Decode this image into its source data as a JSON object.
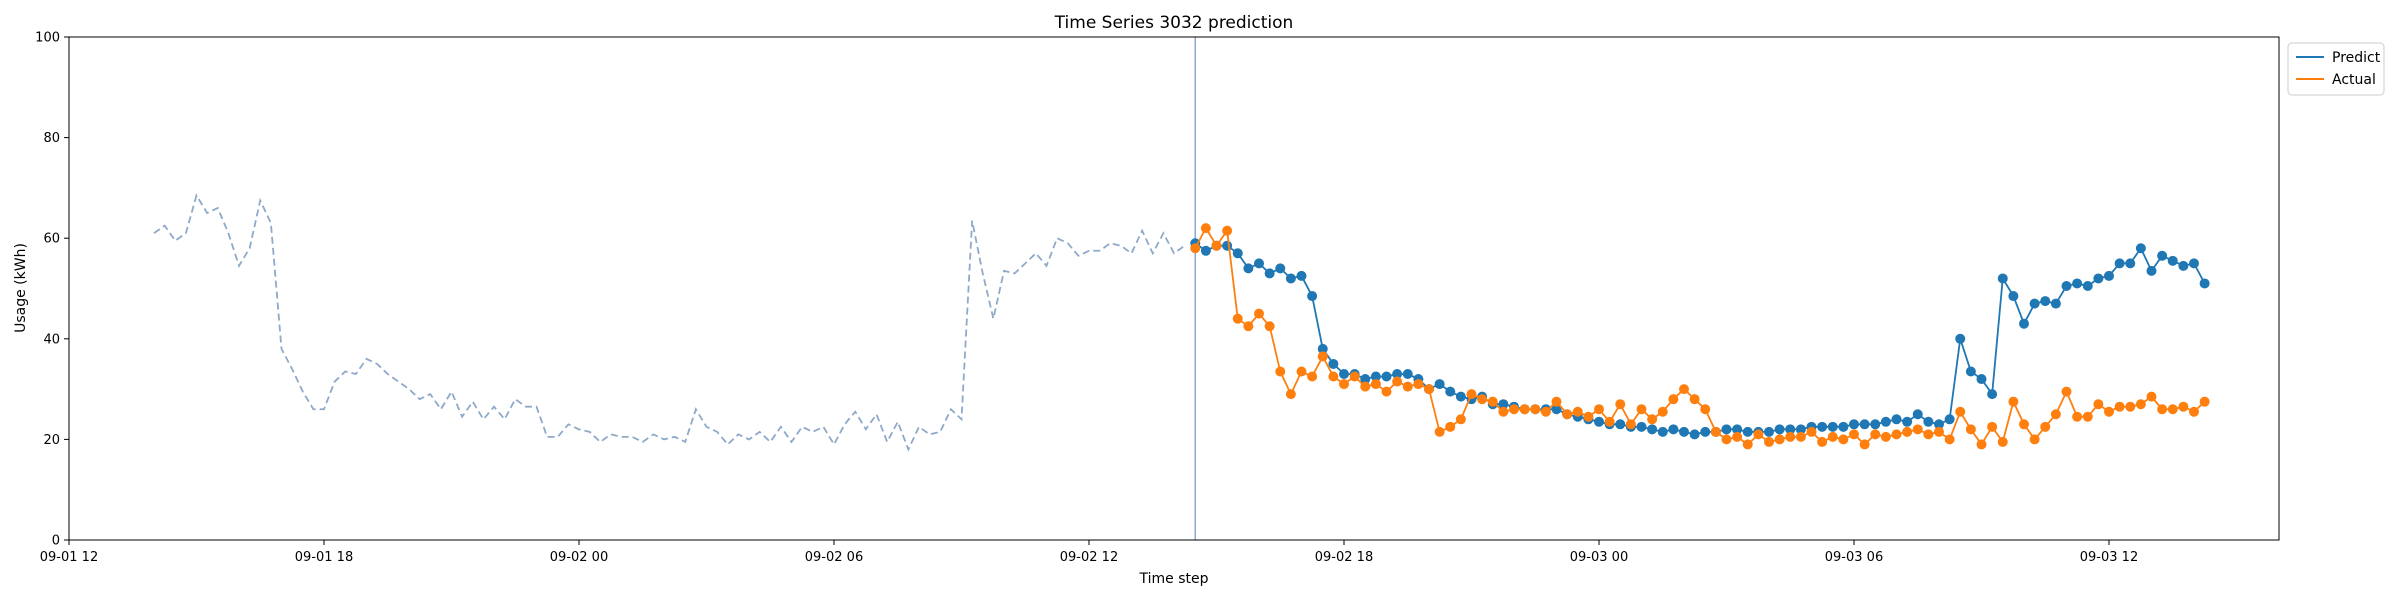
{
  "chart_data": {
    "type": "line",
    "title": "Time Series 3032 prediction",
    "xlabel": "Time step",
    "ylabel": "Usage (kWh)",
    "ylim": [
      0,
      100
    ],
    "yticks": [
      0,
      20,
      40,
      60,
      80,
      100
    ],
    "x_start": "09-01 12:00",
    "x_end": "09-03 16:00",
    "xticks": [
      {
        "time": "09-01 12:00",
        "label": "09-01 12"
      },
      {
        "time": "09-01 18:00",
        "label": "09-01 18"
      },
      {
        "time": "09-02 00:00",
        "label": "09-02 00"
      },
      {
        "time": "09-02 06:00",
        "label": "09-02 06"
      },
      {
        "time": "09-02 12:00",
        "label": "09-02 12"
      },
      {
        "time": "09-02 18:00",
        "label": "09-02 18"
      },
      {
        "time": "09-03 00:00",
        "label": "09-03 00"
      },
      {
        "time": "09-03 06:00",
        "label": "09-03 06"
      },
      {
        "time": "09-03 12:00",
        "label": "09-03 12"
      }
    ],
    "grid": false,
    "legend_position": "top-right",
    "forecast_start": "09-02 14:30",
    "history": {
      "start": "09-01 14:00",
      "step_minutes": 15,
      "color": "#8fa9c9",
      "style": "dashed",
      "values": [
        61,
        62.5,
        59.5,
        61,
        68.5,
        65,
        66,
        61,
        54.5,
        58,
        67.5,
        63,
        38,
        34,
        29.5,
        26,
        26,
        31.5,
        33.5,
        33,
        36,
        35,
        33,
        31.5,
        30,
        28,
        29,
        26,
        29.5,
        24.5,
        27.5,
        24,
        26.5,
        24,
        28,
        26.5,
        26.5,
        20.5,
        20.5,
        23,
        22,
        21.5,
        19.5,
        21,
        20.5,
        20.5,
        19.5,
        21,
        20,
        20.5,
        19.5,
        26,
        22.5,
        21.5,
        19,
        21,
        20,
        21.5,
        19.5,
        22.5,
        19.5,
        22.5,
        21.5,
        22.5,
        19,
        23,
        25.5,
        22,
        25,
        19.5,
        23.5,
        18,
        22.5,
        21,
        21.5,
        26,
        24,
        63.5,
        53,
        44,
        53.5,
        53,
        55,
        57,
        54.5,
        60,
        59,
        56.5,
        57.5,
        57.5,
        59,
        58.5,
        57,
        61.5,
        57,
        61,
        57,
        58.5
      ]
    },
    "series": [
      {
        "name": "Predict",
        "color": "#1f77b4",
        "start": "09-02 14:30",
        "step_minutes": 15,
        "values": [
          59,
          57.5,
          58.5,
          58.5,
          57,
          54,
          55,
          53,
          54,
          52,
          52.5,
          48.5,
          38,
          35,
          33,
          33,
          32,
          32.5,
          32.5,
          33,
          33,
          32,
          30,
          31,
          29.5,
          28.5,
          28,
          28.5,
          27,
          27,
          26.5,
          26,
          26,
          26,
          26,
          25,
          24.5,
          24,
          23.5,
          23,
          23,
          22.5,
          22.5,
          22,
          21.5,
          22,
          21.5,
          21,
          21.5,
          21.5,
          22,
          22,
          21.5,
          21.5,
          21.5,
          22,
          22,
          22,
          22.5,
          22.5,
          22.5,
          22.5,
          23,
          23,
          23,
          23.5,
          24,
          23.5,
          25,
          23.5,
          23,
          24,
          40,
          33.5,
          32,
          29,
          52,
          48.5,
          43,
          47,
          47.5,
          47,
          50.5,
          51,
          50.5,
          52,
          52.5,
          55,
          55,
          58,
          53.5,
          56.5,
          55.5,
          54.5,
          55,
          51
        ]
      },
      {
        "name": "Actual",
        "color": "#ff7f0e",
        "start": "09-02 14:30",
        "step_minutes": 15,
        "values": [
          58,
          62,
          58.5,
          61.5,
          44,
          42.5,
          45,
          42.5,
          33.5,
          29,
          33.5,
          32.5,
          36.5,
          32.5,
          31,
          32.5,
          30.5,
          31,
          29.5,
          31.5,
          30.5,
          31,
          30,
          21.5,
          22.5,
          24,
          29,
          28,
          27.5,
          25.5,
          26,
          26,
          26,
          25.5,
          27.5,
          25,
          25.5,
          24.5,
          26,
          23.5,
          27,
          23,
          26,
          24,
          25.5,
          28,
          30,
          28,
          26,
          21.5,
          20,
          20.5,
          19,
          21,
          19.5,
          20,
          20.5,
          20.5,
          21.5,
          19.5,
          20.5,
          20,
          21,
          19,
          21,
          20.5,
          21,
          21.5,
          22,
          21,
          21.5,
          20,
          25.5,
          22,
          19,
          22.5,
          19.5,
          27.5,
          23,
          20,
          22.5,
          25,
          29.5,
          24.5,
          24.5,
          27,
          25.5,
          26.5,
          26.5,
          27,
          28.5,
          26,
          26,
          26.5,
          25.5,
          27.5
        ]
      }
    ]
  }
}
